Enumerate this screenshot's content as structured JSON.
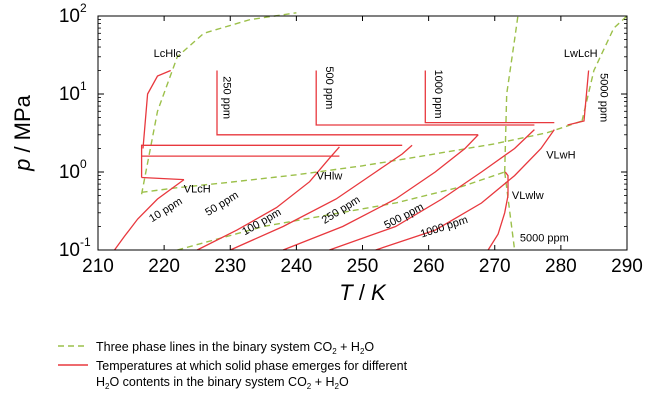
{
  "chart_data": {
    "type": "line",
    "xlabel_var": "T",
    "xlabel_unit": "K",
    "ylabel_var": "p",
    "ylabel_unit": "MPa",
    "xlim": [
      210,
      290
    ],
    "ylim": [
      0.1,
      100
    ],
    "yscale": "log",
    "grid": false,
    "x_ticks": [
      210,
      220,
      230,
      240,
      250,
      260,
      270,
      280,
      290
    ],
    "y_ticks": [
      {
        "value": 0.1,
        "base": "10",
        "exp": "-1"
      },
      {
        "value": 1,
        "base": "10",
        "exp": "0"
      },
      {
        "value": 10,
        "base": "10",
        "exp": "1"
      },
      {
        "value": 100,
        "base": "10",
        "exp": "2"
      }
    ],
    "colors": {
      "three_phase": "#9cc04a",
      "solid_emerges": "#e8383e"
    },
    "three_phase_lines": [
      {
        "points": [
          [
            216.6,
            0.55
          ],
          [
            222,
            0.63
          ],
          [
            230,
            0.74
          ],
          [
            240,
            0.92
          ],
          [
            250,
            1.2
          ],
          [
            260,
            1.65
          ],
          [
            270,
            2.3
          ],
          [
            278,
            3.2
          ],
          [
            283.2,
            4.5
          ]
        ]
      },
      {
        "points": [
          [
            216.6,
            0.52
          ],
          [
            219,
            6
          ],
          [
            222,
            30
          ],
          [
            226,
            60
          ],
          [
            233,
            90
          ],
          [
            240,
            110
          ]
        ]
      },
      {
        "points": [
          [
            222,
            0.1
          ],
          [
            235,
            0.2
          ],
          [
            255,
            0.4
          ],
          [
            265,
            0.65
          ],
          [
            271.5,
            1.0
          ]
        ]
      },
      {
        "points": [
          [
            271.5,
            1.0
          ],
          [
            271.8,
            10
          ],
          [
            273,
            50
          ],
          [
            273.5,
            100
          ]
        ]
      },
      {
        "points": [
          [
            283.2,
            4.5
          ],
          [
            285,
            20
          ],
          [
            288,
            70
          ],
          [
            290,
            100
          ]
        ]
      },
      {
        "points": [
          [
            271.5,
            1.0
          ],
          [
            273,
            0.1
          ]
        ]
      }
    ],
    "solid_emergence_curves": [
      {
        "label": "10 ppm",
        "points": [
          [
            212.5,
            0.1
          ],
          [
            214,
            0.15
          ],
          [
            216,
            0.25
          ],
          [
            219,
            0.45
          ],
          [
            223,
            0.8
          ]
        ]
      },
      {
        "label": "50 ppm",
        "points": [
          [
            225,
            0.1
          ],
          [
            231,
            0.18
          ],
          [
            237,
            0.35
          ],
          [
            242,
            0.75
          ],
          [
            245,
            1.5
          ],
          [
            246.5,
            2.1
          ]
        ]
      },
      {
        "label": "100 ppm",
        "points": [
          [
            230,
            0.1
          ],
          [
            238,
            0.2
          ],
          [
            246,
            0.45
          ],
          [
            252,
            1.0
          ],
          [
            256,
            1.7
          ],
          [
            257.5,
            2.2
          ]
        ]
      },
      {
        "label": "250 ppm",
        "points": [
          [
            238,
            0.1
          ],
          [
            247,
            0.2
          ],
          [
            255,
            0.45
          ],
          [
            261,
            1.0
          ],
          [
            265.5,
            2.0
          ],
          [
            267.5,
            3.0
          ]
        ]
      },
      {
        "label": "500 ppm",
        "points": [
          [
            245,
            0.1
          ],
          [
            255,
            0.2
          ],
          [
            262,
            0.45
          ],
          [
            268,
            1.0
          ],
          [
            273,
            2.0
          ],
          [
            276,
            3.5
          ]
        ]
      },
      {
        "label": "1000 ppm",
        "points": [
          [
            252,
            0.1
          ],
          [
            261,
            0.18
          ],
          [
            268,
            0.4
          ],
          [
            273,
            0.9
          ],
          [
            277,
            2.0
          ],
          [
            279,
            3.5
          ]
        ]
      },
      {
        "label": "5000 ppm",
        "points": [
          [
            269,
            0.1
          ],
          [
            270.5,
            0.16
          ],
          [
            271.5,
            0.3
          ],
          [
            272,
            0.5
          ]
        ]
      }
    ],
    "solid_upper_segments": [
      {
        "points": [
          [
            216.6,
            0.85
          ],
          [
            216.6,
            2.2
          ],
          [
            223,
            2.2
          ],
          [
            256,
            2.2
          ]
        ]
      },
      {
        "points": [
          [
            216.6,
            1.6
          ],
          [
            246.5,
            1.6
          ]
        ]
      },
      {
        "points": [
          [
            216.6,
            0.85
          ],
          [
            223,
            0.8
          ]
        ]
      },
      {
        "points": [
          [
            216.8,
            2.0
          ],
          [
            217.5,
            10
          ],
          [
            219,
            17
          ],
          [
            221,
            20
          ]
        ]
      },
      {
        "points": [
          [
            228,
            20
          ],
          [
            228,
            3.0
          ],
          [
            267.5,
            3.0
          ]
        ]
      },
      {
        "points": [
          [
            243,
            20
          ],
          [
            243,
            4.0
          ],
          [
            276,
            4.0
          ]
        ]
      },
      {
        "points": [
          [
            259.5,
            20
          ],
          [
            259.5,
            4.3
          ],
          [
            279,
            4.3
          ]
        ]
      },
      {
        "points": [
          [
            281,
            4.0
          ],
          [
            283.5,
            4.5
          ],
          [
            284.2,
            20
          ]
        ]
      },
      {
        "points": [
          [
            272,
            0.5
          ],
          [
            272,
            0.9
          ],
          [
            271.6,
            1.0
          ]
        ]
      }
    ],
    "region_labels": [
      {
        "text": "LcHlc",
        "x": 220.5,
        "y": 30
      },
      {
        "text": "LwLcH",
        "x": 283,
        "y": 30
      },
      {
        "text": "VLcH",
        "x": 225,
        "y": 0.55
      },
      {
        "text": "VHlw",
        "x": 245,
        "y": 0.8
      },
      {
        "text": "VLwH",
        "x": 280,
        "y": 1.5
      },
      {
        "text": "VLwlw",
        "x": 275,
        "y": 0.45
      }
    ],
    "ppm_labels": [
      {
        "text": "250 ppm",
        "x": 229,
        "y": 9,
        "angle": 90
      },
      {
        "text": "500 ppm",
        "x": 244.5,
        "y": 12,
        "angle": 90
      },
      {
        "text": "1000 ppm",
        "x": 261,
        "y": 10,
        "angle": 90
      },
      {
        "text": "5000 ppm",
        "x": 286,
        "y": 9,
        "angle": 90
      },
      {
        "text": "10 ppm",
        "x": 220.5,
        "y": 0.3,
        "angle": -32
      },
      {
        "text": "50 ppm",
        "x": 229,
        "y": 0.36,
        "angle": -32
      },
      {
        "text": "100 ppm",
        "x": 235,
        "y": 0.21,
        "angle": -30
      },
      {
        "text": "250 ppm",
        "x": 247,
        "y": 0.3,
        "angle": -32
      },
      {
        "text": "500 ppm",
        "x": 256.5,
        "y": 0.25,
        "angle": -28
      },
      {
        "text": "1000 ppm",
        "x": 262.5,
        "y": 0.18,
        "angle": -18
      },
      {
        "text": "5000 ppm",
        "x": 277.5,
        "y": 0.128,
        "angle": 0
      }
    ],
    "legend": [
      {
        "style": "dashed",
        "lines": [
          [
            "Three phase lines in the binary system CO",
            "2",
            " + H",
            "2",
            "O"
          ]
        ]
      },
      {
        "style": "solid",
        "lines": [
          [
            "Temperatures at which solid phase emerges for different"
          ],
          [
            "H",
            "2",
            "O contents in the binary system CO",
            "2",
            " + H",
            "2",
            "O"
          ]
        ]
      }
    ]
  }
}
